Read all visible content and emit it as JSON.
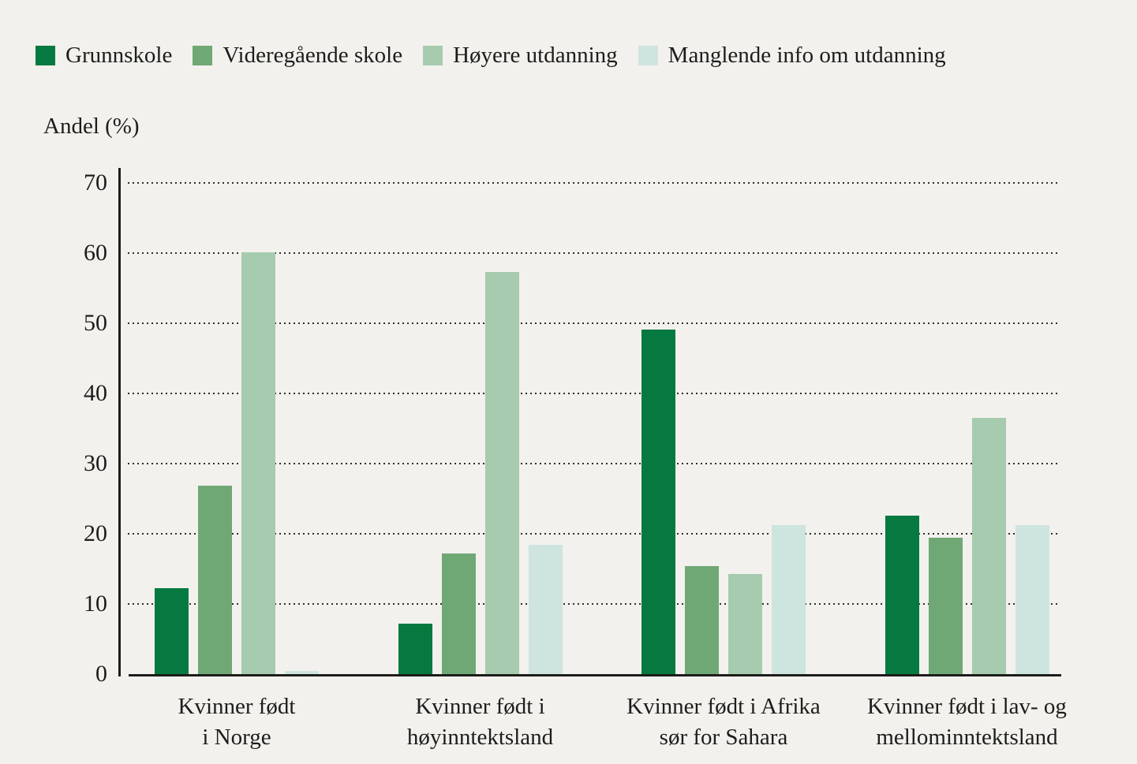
{
  "page": {
    "background_color": "#f2f1ed",
    "text_color": "#1d1d1b"
  },
  "chart_data": {
    "type": "bar",
    "title": "",
    "ylabel": "Andel (%)",
    "xlabel": "",
    "ylim": [
      0,
      70
    ],
    "ytick_step": 10,
    "ytick_labels": [
      "0",
      "10",
      "20",
      "30",
      "40",
      "50",
      "60",
      "70"
    ],
    "grid": "horizontal-dotted",
    "legend_position": "top-left",
    "categories": [
      [
        "Kvinner født",
        "i Norge"
      ],
      [
        "Kvinner født i",
        "høyinntektsland"
      ],
      [
        "Kvinner født i Afrika",
        "sør for Sahara"
      ],
      [
        "Kvinner født i lav- og",
        "mellominntektsland"
      ]
    ],
    "series": [
      {
        "name": "Grunnskole",
        "color": "#05793f",
        "values": [
          12.3,
          7.2,
          49.1,
          22.6
        ]
      },
      {
        "name": "Videregående skole",
        "color": "#6fa874",
        "values": [
          26.9,
          17.2,
          15.4,
          19.4
        ]
      },
      {
        "name": "Høyere utdanning",
        "color": "#a6cbaf",
        "values": [
          60.1,
          57.3,
          14.3,
          36.5
        ]
      },
      {
        "name": "Manglende info om utdanning",
        "color": "#cee4df",
        "values": [
          0.4,
          18.4,
          21.2,
          21.2
        ]
      }
    ]
  }
}
